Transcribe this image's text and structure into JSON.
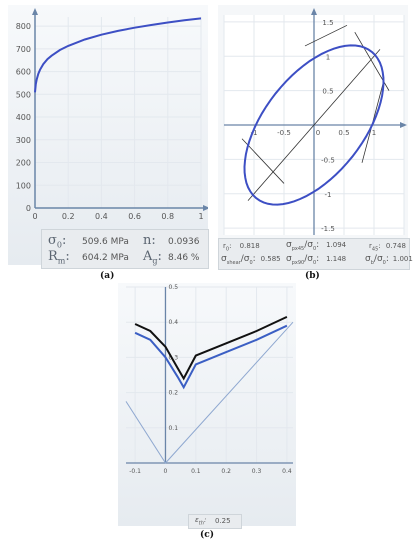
{
  "panels": {
    "a": {
      "caption": "(a)",
      "chart_data": {
        "type": "line",
        "title": "",
        "xlabel": "",
        "ylabel": "",
        "xlim": [
          0,
          1
        ],
        "ylim": [
          0,
          840
        ],
        "xticks": [
          "0",
          "0.2",
          "0.4",
          "0.6",
          "0.8",
          "1"
        ],
        "yticks": [
          "0",
          "100",
          "200",
          "300",
          "400",
          "500",
          "600",
          "700",
          "800"
        ],
        "series": [
          {
            "name": "",
            "x": [
              0,
              0.005,
              0.01,
              0.02,
              0.03,
              0.05,
              0.075,
              0.1,
              0.15,
              0.2,
              0.3,
              0.4,
              0.5,
              0.6,
              0.7,
              0.8,
              0.9,
              1.0
            ],
            "y": [
              509,
              545,
              565,
              590,
              608,
              633,
              655,
              670,
              695,
              713,
              741,
              762,
              779,
              793,
              805,
              816,
              826,
              834
            ]
          }
        ]
      },
      "info": [
        {
          "symbol": "σ",
          "sub": "0",
          "value": "509.6 MPa",
          "symbol2": "n",
          "sub2": "",
          "value2": "0.0936"
        },
        {
          "symbol": "R",
          "sub": "m",
          "value": "604.2 MPa",
          "symbol2": "A",
          "sub2": "g",
          "value2": "8.46 %"
        }
      ]
    },
    "b": {
      "caption": "(b)",
      "chart_data": {
        "type": "line",
        "title": "",
        "xlabel": "",
        "ylabel": "",
        "xlim": [
          -1.5,
          1.5
        ],
        "ylim": [
          -1.6,
          1.6
        ],
        "xticks": [
          "-1",
          "-0.5",
          "0",
          "0.5",
          "1"
        ],
        "yticks": [
          "-1.5",
          "-1",
          "-0.5",
          "0",
          "0.5",
          "1",
          "1.5"
        ],
        "yield_locus": {
          "center": [
            0,
            0
          ],
          "major_axis_angle_deg": 45,
          "a": 1.44,
          "b": 0.78
        },
        "reference_lines": [
          {
            "name": "",
            "x": [
              -1.1,
              1.1
            ],
            "y": [
              -1.1,
              1.1
            ]
          }
        ]
      },
      "info": [
        {
          "label": "r",
          "sub": "0",
          "value": "0.818",
          "label2": "σ",
          "sub2": "px45",
          "den2": "σ",
          "densub2": "0",
          "value2": "1.094",
          "label3": "r",
          "sub3": "45",
          "value3": "0.748"
        },
        {
          "label": "σ",
          "sub": "shear",
          "den": "σ",
          "densub": "0",
          "value": "0.585",
          "label2": "σ",
          "sub2": "px90",
          "den2": "σ",
          "densub2": "0",
          "value2": "1.148",
          "label3": "σ",
          "sub3": "b",
          "den3": "σ",
          "densub3": "0",
          "value3": "1.001"
        }
      ]
    },
    "c": {
      "caption": "(c)",
      "chart_data": {
        "type": "line",
        "title": "",
        "xlabel": "",
        "ylabel": "",
        "xlim": [
          -0.13,
          0.42
        ],
        "ylim": [
          0,
          0.5
        ],
        "xticks": [
          "-0.1",
          "0",
          "0.1",
          "0.2",
          "0.3",
          "0.4"
        ],
        "yticks": [
          "0.1",
          "0.2",
          "0.3",
          "0.4",
          "0.5"
        ],
        "series": [
          {
            "name": "",
            "color": "#111111",
            "x": [
              -0.1,
              -0.05,
              0,
              0.04,
              0.06,
              0.1,
              0.2,
              0.3,
              0.4
            ],
            "y": [
              0.395,
              0.375,
              0.33,
              0.27,
              0.24,
              0.305,
              0.34,
              0.375,
              0.415
            ]
          },
          {
            "name": "",
            "color": "#3b5fc4",
            "x": [
              -0.1,
              -0.05,
              0,
              0.04,
              0.06,
              0.1,
              0.2,
              0.3,
              0.4
            ],
            "y": [
              0.37,
              0.35,
              0.3,
              0.245,
              0.215,
              0.28,
              0.315,
              0.35,
              0.39
            ]
          },
          {
            "name": "",
            "color": "#8fa8d0",
            "x": [
              -0.13,
              0,
              0.42
            ],
            "y": [
              0.175,
              0,
              0.4
            ]
          }
        ]
      },
      "info": {
        "label": "ε",
        "sub": "th",
        "value": "0.25"
      }
    }
  },
  "colors": {
    "curve_blue": "#3d4fc4",
    "axis": "#6a85a8",
    "grid": "#e3e8ee",
    "dark": "#111111",
    "guide": "#8fa8d0"
  }
}
